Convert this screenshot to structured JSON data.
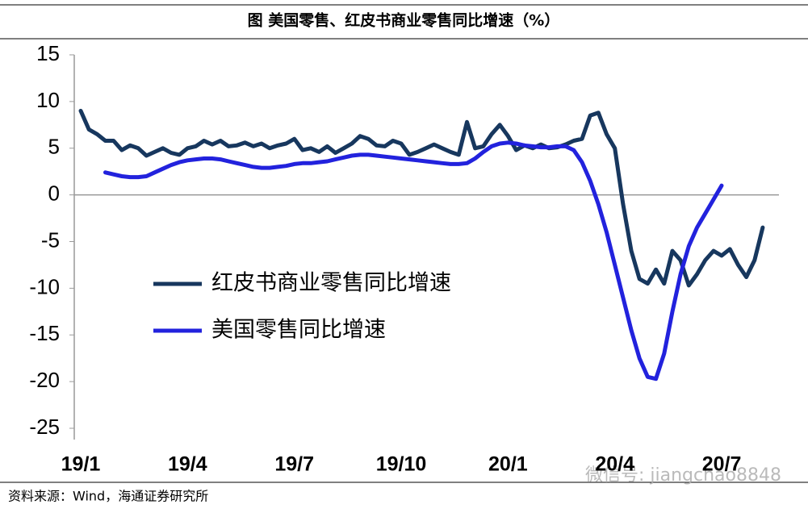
{
  "chart_data": {
    "type": "line",
    "title": "图 美国零售、红皮书商业零售同比增速（%）",
    "source": "资料来源：Wind，海通证券研究所",
    "watermark": "微信号: jiangchao8848",
    "categories": [
      "19/1",
      null,
      null,
      null,
      null,
      null,
      null,
      null,
      null,
      null,
      null,
      null,
      null,
      "19/4",
      null,
      null,
      null,
      null,
      null,
      null,
      null,
      null,
      null,
      null,
      null,
      null,
      "19/7",
      null,
      null,
      null,
      null,
      null,
      null,
      null,
      null,
      null,
      null,
      null,
      null,
      "19/10",
      null,
      null,
      null,
      null,
      null,
      null,
      null,
      null,
      null,
      null,
      null,
      null,
      "20/1",
      null,
      null,
      null,
      null,
      null,
      null,
      null,
      null,
      null,
      null,
      null,
      null,
      "20/4",
      null,
      null,
      null,
      null,
      null,
      null,
      null,
      null,
      null,
      null,
      null,
      null,
      "20/7",
      null,
      null,
      null,
      null,
      null
    ],
    "series": [
      {
        "name": "红皮书商业零售同比增速",
        "color": "#17375e",
        "values": [
          9,
          7,
          6.5,
          5.8,
          5.8,
          4.8,
          5.3,
          5,
          4.2,
          4.6,
          5,
          4.5,
          4.3,
          5,
          5.2,
          5.8,
          5.4,
          5.8,
          5.2,
          5.3,
          5.6,
          5.2,
          5.5,
          5,
          5.3,
          5.5,
          6,
          4.8,
          5,
          4.6,
          5.2,
          4.5,
          5,
          5.5,
          6.3,
          6,
          5.3,
          5.2,
          5.8,
          5.5,
          4.3,
          4.6,
          5,
          5.4,
          5,
          4.6,
          4.3,
          7.8,
          5,
          5.2,
          6.5,
          7.5,
          6.3,
          4.8,
          5.3,
          5,
          5.4,
          5,
          5.1,
          5.4,
          5.8,
          6,
          8.5,
          8.8,
          6.5,
          5,
          -1,
          -6,
          -9,
          -9.5,
          -8,
          -9.5,
          -6,
          -7,
          -9.7,
          -8.5,
          -7,
          -6,
          -6.5,
          -5.8,
          -7.5,
          -8.8,
          -7,
          -3.5
        ]
      },
      {
        "name": "美国零售同比增速",
        "color": "#2222dd",
        "values": [
          null,
          null,
          null,
          2.4,
          2.2,
          2.0,
          1.9,
          1.9,
          2.0,
          2.4,
          2.8,
          3.2,
          3.5,
          3.7,
          3.8,
          3.9,
          3.9,
          3.8,
          3.6,
          3.4,
          3.2,
          3.0,
          2.9,
          2.9,
          3.0,
          3.1,
          3.3,
          3.4,
          3.4,
          3.5,
          3.6,
          3.8,
          4.0,
          4.2,
          4.3,
          4.3,
          4.2,
          4.1,
          4.0,
          3.9,
          3.8,
          3.7,
          3.6,
          3.5,
          3.4,
          3.3,
          3.3,
          3.4,
          3.9,
          4.6,
          5.2,
          5.5,
          5.6,
          5.5,
          5.3,
          5.2,
          5.1,
          5.1,
          5.2,
          5.2,
          4.8,
          3.5,
          1.5,
          -1,
          -4,
          -7.5,
          -11,
          -14.5,
          -17.5,
          -19.5,
          -19.7,
          -17,
          -12.5,
          -8.5,
          -5.5,
          -3.5,
          -2,
          -0.5,
          1.0,
          null,
          null,
          null,
          null,
          null
        ]
      }
    ],
    "ylim": [
      -25,
      15
    ],
    "yticks": [
      -25,
      -20,
      -15,
      -10,
      -5,
      0,
      5,
      10,
      15
    ]
  }
}
